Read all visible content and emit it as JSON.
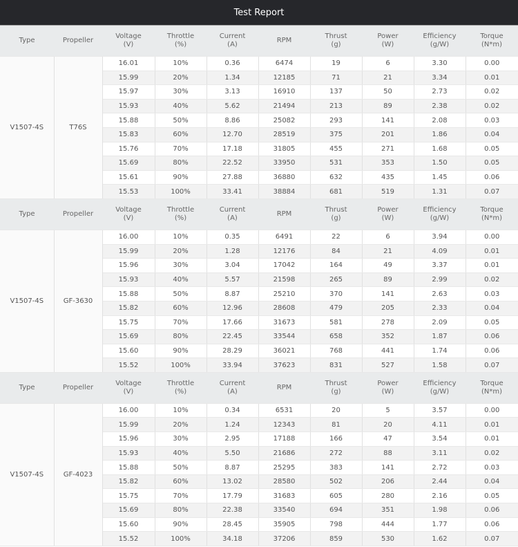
{
  "title": "Test Report",
  "headers": [
    "Type",
    "Propeller",
    "Voltage\n(V)",
    "Throttle\n(%)",
    "Current\n(A)",
    "RPM",
    "Thrust\n(g)",
    "Power\n(W)",
    "Efficiency\n(g/W)",
    "Torque\n(N*m)"
  ],
  "colors": {
    "title_bg": "#26272b",
    "header_bg": "#e9ebec",
    "row_alt": "#f2f2f2"
  },
  "blocks": [
    {
      "type": "V1507-4S",
      "propeller": "T76S",
      "rows": [
        [
          "16.01",
          "10%",
          "0.36",
          "6474",
          "19",
          "6",
          "3.30",
          "0.00"
        ],
        [
          "15.99",
          "20%",
          "1.34",
          "12185",
          "71",
          "21",
          "3.34",
          "0.01"
        ],
        [
          "15.97",
          "30%",
          "3.13",
          "16910",
          "137",
          "50",
          "2.73",
          "0.02"
        ],
        [
          "15.93",
          "40%",
          "5.62",
          "21494",
          "213",
          "89",
          "2.38",
          "0.02"
        ],
        [
          "15.88",
          "50%",
          "8.86",
          "25082",
          "293",
          "141",
          "2.08",
          "0.03"
        ],
        [
          "15.83",
          "60%",
          "12.70",
          "28519",
          "375",
          "201",
          "1.86",
          "0.04"
        ],
        [
          "15.76",
          "70%",
          "17.18",
          "31805",
          "455",
          "271",
          "1.68",
          "0.05"
        ],
        [
          "15.69",
          "80%",
          "22.52",
          "33950",
          "531",
          "353",
          "1.50",
          "0.05"
        ],
        [
          "15.61",
          "90%",
          "27.88",
          "36880",
          "632",
          "435",
          "1.45",
          "0.06"
        ],
        [
          "15.53",
          "100%",
          "33.41",
          "38884",
          "681",
          "519",
          "1.31",
          "0.07"
        ]
      ]
    },
    {
      "type": "V1507-4S",
      "propeller": "GF-3630",
      "rows": [
        [
          "16.00",
          "10%",
          "0.35",
          "6491",
          "22",
          "6",
          "3.94",
          "0.00"
        ],
        [
          "15.99",
          "20%",
          "1.28",
          "12176",
          "84",
          "21",
          "4.09",
          "0.01"
        ],
        [
          "15.96",
          "30%",
          "3.04",
          "17042",
          "164",
          "49",
          "3.37",
          "0.01"
        ],
        [
          "15.93",
          "40%",
          "5.57",
          "21598",
          "265",
          "89",
          "2.99",
          "0.02"
        ],
        [
          "15.88",
          "50%",
          "8.87",
          "25210",
          "370",
          "141",
          "2.63",
          "0.03"
        ],
        [
          "15.82",
          "60%",
          "12.96",
          "28608",
          "479",
          "205",
          "2.33",
          "0.04"
        ],
        [
          "15.75",
          "70%",
          "17.66",
          "31673",
          "581",
          "278",
          "2.09",
          "0.05"
        ],
        [
          "15.69",
          "80%",
          "22.45",
          "33544",
          "658",
          "352",
          "1.87",
          "0.06"
        ],
        [
          "15.60",
          "90%",
          "28.29",
          "36021",
          "768",
          "441",
          "1.74",
          "0.06"
        ],
        [
          "15.52",
          "100%",
          "33.94",
          "37623",
          "831",
          "527",
          "1.58",
          "0.07"
        ]
      ]
    },
    {
      "type": "V1507-4S",
      "propeller": "GF-4023",
      "rows": [
        [
          "16.00",
          "10%",
          "0.34",
          "6531",
          "20",
          "5",
          "3.57",
          "0.00"
        ],
        [
          "15.99",
          "20%",
          "1.24",
          "12343",
          "81",
          "20",
          "4.11",
          "0.01"
        ],
        [
          "15.96",
          "30%",
          "2.95",
          "17188",
          "166",
          "47",
          "3.54",
          "0.01"
        ],
        [
          "15.93",
          "40%",
          "5.50",
          "21686",
          "272",
          "88",
          "3.11",
          "0.02"
        ],
        [
          "15.88",
          "50%",
          "8.87",
          "25295",
          "383",
          "141",
          "2.72",
          "0.03"
        ],
        [
          "15.82",
          "60%",
          "13.02",
          "28580",
          "502",
          "206",
          "2.44",
          "0.04"
        ],
        [
          "15.75",
          "70%",
          "17.79",
          "31683",
          "605",
          "280",
          "2.16",
          "0.05"
        ],
        [
          "15.69",
          "80%",
          "22.38",
          "33540",
          "694",
          "351",
          "1.98",
          "0.06"
        ],
        [
          "15.60",
          "90%",
          "28.45",
          "35905",
          "798",
          "444",
          "1.77",
          "0.06"
        ],
        [
          "15.52",
          "100%",
          "34.18",
          "37206",
          "859",
          "530",
          "1.62",
          "0.07"
        ]
      ]
    }
  ]
}
